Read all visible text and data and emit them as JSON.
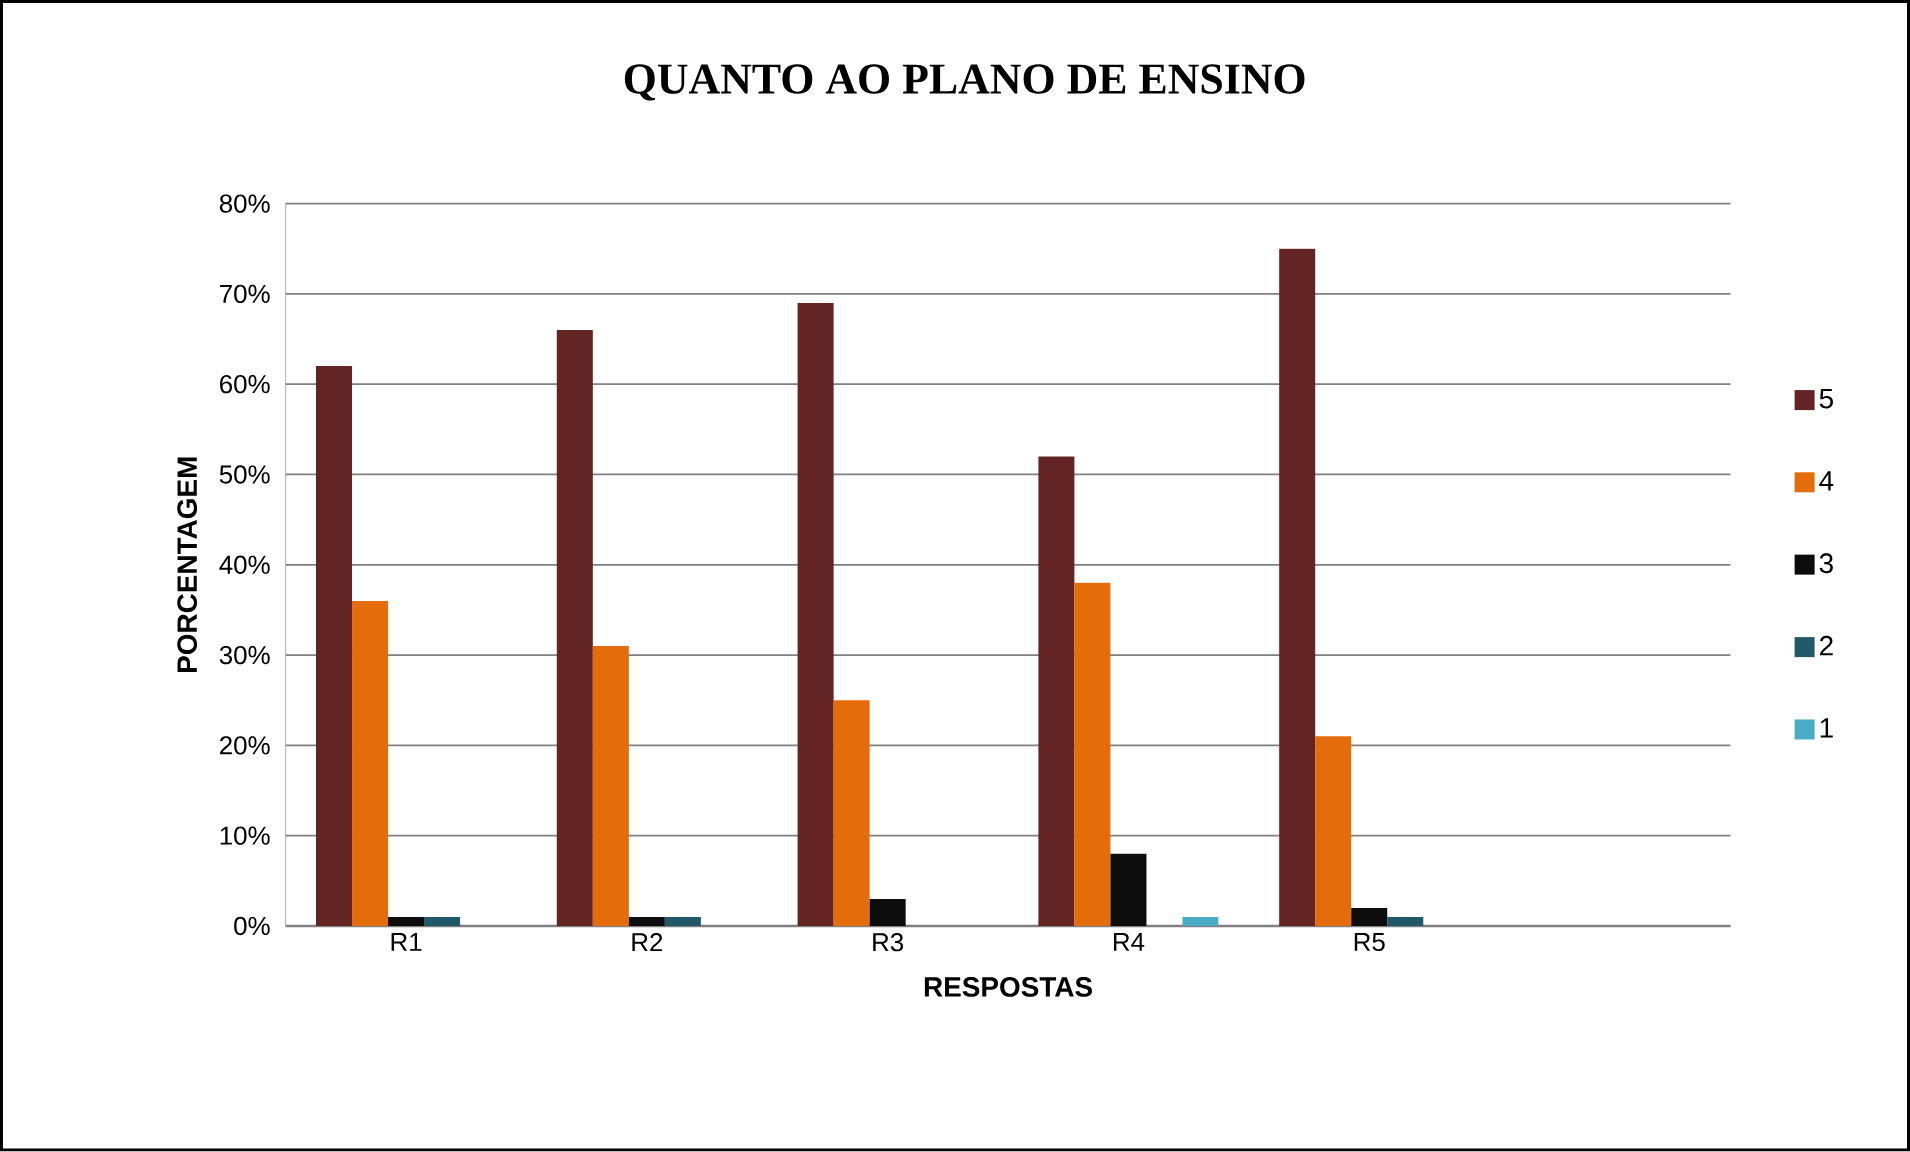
{
  "chart_data": {
    "type": "bar",
    "title": "QUANTO AO PLANO DE ENSINO",
    "xlabel": "RESPOSTAS",
    "ylabel": "PORCENTAGEM",
    "categories": [
      "R1",
      "R2",
      "R3",
      "R4",
      "R5",
      null
    ],
    "series": [
      {
        "name": "5",
        "color": "#632523",
        "values": [
          62,
          66,
          69,
          52,
          75,
          null
        ]
      },
      {
        "name": "4",
        "color": "#e46c0a",
        "values": [
          36,
          31,
          25,
          38,
          21,
          null
        ]
      },
      {
        "name": "3",
        "color": "#0d0d0d",
        "values": [
          1,
          1,
          3,
          8,
          2,
          null
        ]
      },
      {
        "name": "2",
        "color": "#215968",
        "values": [
          1,
          1,
          null,
          null,
          1,
          null
        ]
      },
      {
        "name": "1",
        "color": "#4bacc6",
        "values": [
          null,
          null,
          null,
          1,
          null,
          null
        ]
      }
    ],
    "ylim": [
      0,
      80
    ],
    "yticks": [
      {
        "value": 0,
        "label": "0%"
      },
      {
        "value": 10,
        "label": "10%"
      },
      {
        "value": 20,
        "label": "20%"
      },
      {
        "value": 30,
        "label": "30%"
      },
      {
        "value": 40,
        "label": "40%"
      },
      {
        "value": 50,
        "label": "50%"
      },
      {
        "value": 60,
        "label": "60%"
      },
      {
        "value": 70,
        "label": "70%"
      },
      {
        "value": 80,
        "label": "80%"
      }
    ],
    "grid": "y",
    "legend": "right"
  }
}
